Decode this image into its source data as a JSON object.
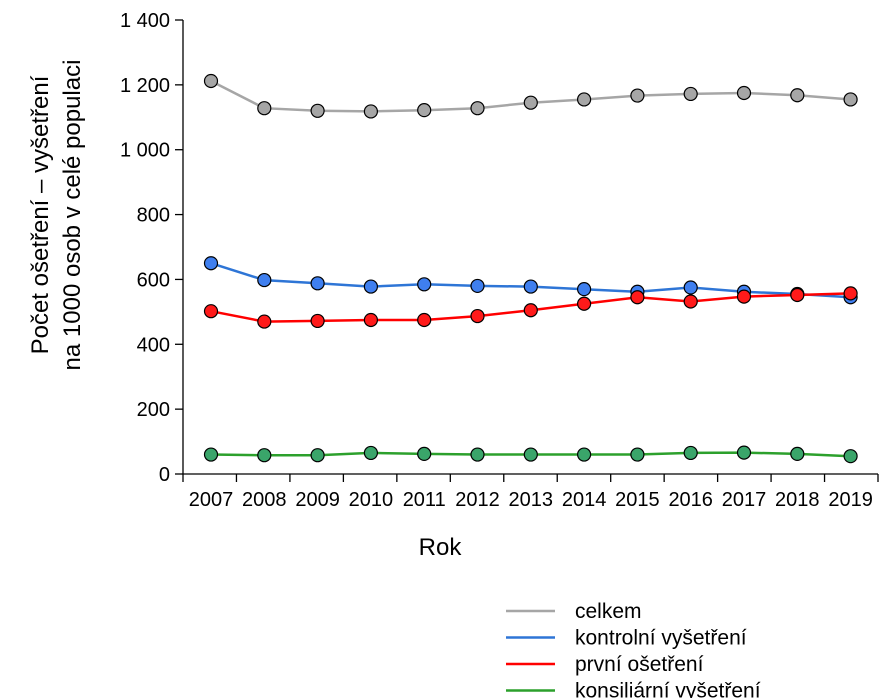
{
  "chart_data": {
    "type": "line",
    "title": "",
    "xlabel": "Rok",
    "ylabel_lines": [
      "Počet ošetření – vyšetření",
      "na 1000 osob v celé populaci"
    ],
    "x": [
      "2007",
      "2008",
      "2009",
      "2010",
      "2011",
      "2012",
      "2013",
      "2014",
      "2015",
      "2016",
      "2017",
      "2018",
      "2019"
    ],
    "ylim": [
      0,
      1400
    ],
    "yticks": [
      0,
      200,
      400,
      600,
      800,
      1000,
      1200,
      1400
    ],
    "ytick_labels": [
      "0",
      "200",
      "400",
      "600",
      "800",
      "1 000",
      "1 200",
      "1 400"
    ],
    "grid": false,
    "legend_position": "bottom-right, below axis",
    "series": [
      {
        "name": "celkem",
        "line_color": "#a6a6a6",
        "marker_color": "#a6a6a6",
        "values": [
          1212,
          1128,
          1120,
          1118,
          1122,
          1128,
          1145,
          1155,
          1167,
          1172,
          1175,
          1168,
          1155
        ]
      },
      {
        "name": "kontrolní vyšetření",
        "line_color": "#2e75d6",
        "marker_color": "#3f7fef",
        "values": [
          650,
          598,
          588,
          578,
          585,
          580,
          578,
          570,
          562,
          575,
          562,
          555,
          545
        ]
      },
      {
        "name": "první ošetření",
        "line_color": "#ff0000",
        "marker_color": "#ff1a1a",
        "values": [
          502,
          470,
          472,
          475,
          475,
          487,
          505,
          525,
          545,
          532,
          547,
          552,
          557
        ]
      },
      {
        "name": "konsiliární vyšetření",
        "line_color": "#2ca02c",
        "marker_color": "#3aa56a",
        "values": [
          60,
          58,
          58,
          65,
          62,
          60,
          60,
          60,
          60,
          65,
          66,
          62,
          55
        ]
      }
    ]
  }
}
